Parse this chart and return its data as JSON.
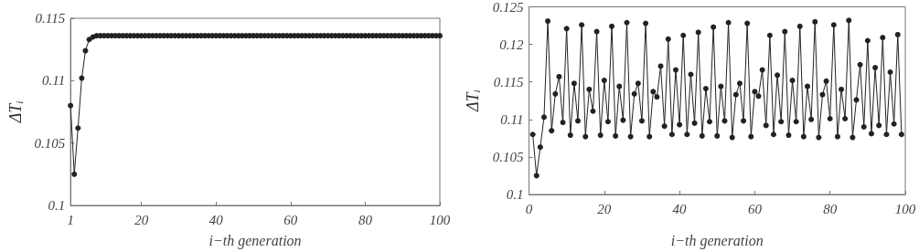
{
  "chart_data": [
    {
      "type": "line",
      "xlabel": "i−th generation",
      "ylabel": "ΔT$_{i}$",
      "marker": "circle",
      "line_style": "solid",
      "grid": false,
      "x": [
        1,
        2,
        3,
        4,
        5,
        6,
        7,
        8,
        9,
        10,
        11,
        12,
        13,
        14,
        15,
        16,
        17,
        18,
        19,
        20,
        21,
        22,
        23,
        24,
        25,
        26,
        27,
        28,
        29,
        30,
        31,
        32,
        33,
        34,
        35,
        36,
        37,
        38,
        39,
        40,
        41,
        42,
        43,
        44,
        45,
        46,
        47,
        48,
        49,
        50,
        51,
        52,
        53,
        54,
        55,
        56,
        57,
        58,
        59,
        60,
        61,
        62,
        63,
        64,
        65,
        66,
        67,
        68,
        69,
        70,
        71,
        72,
        73,
        74,
        75,
        76,
        77,
        78,
        79,
        80,
        81,
        82,
        83,
        84,
        85,
        86,
        87,
        88,
        89,
        90,
        91,
        92,
        93,
        94,
        95,
        96,
        97,
        98,
        99,
        100
      ],
      "xlim": [
        1,
        100
      ],
      "xticks": [
        1,
        20,
        40,
        60,
        80,
        100
      ],
      "ylim": [
        0.1,
        0.115
      ],
      "yticks": [
        0.1,
        0.105,
        0.11,
        0.115
      ],
      "series": [
        {
          "color": "#222222",
          "values": [
            0.108,
            0.1025,
            0.1062,
            0.1102,
            0.1124,
            0.1133,
            0.1135,
            0.1136,
            0.1136,
            0.1136,
            0.1136,
            0.1136,
            0.1136,
            0.1136,
            0.1136,
            0.1136,
            0.1136,
            0.1136,
            0.1136,
            0.1136,
            0.1136,
            0.1136,
            0.1136,
            0.1136,
            0.1136,
            0.1136,
            0.1136,
            0.1136,
            0.1136,
            0.1136,
            0.1136,
            0.1136,
            0.1136,
            0.1136,
            0.1136,
            0.1136,
            0.1136,
            0.1136,
            0.1136,
            0.1136,
            0.1136,
            0.1136,
            0.1136,
            0.1136,
            0.1136,
            0.1136,
            0.1136,
            0.1136,
            0.1136,
            0.1136,
            0.1136,
            0.1136,
            0.1136,
            0.1136,
            0.1136,
            0.1136,
            0.1136,
            0.1136,
            0.1136,
            0.1136,
            0.1136,
            0.1136,
            0.1136,
            0.1136,
            0.1136,
            0.1136,
            0.1136,
            0.1136,
            0.1136,
            0.1136,
            0.1136,
            0.1136,
            0.1136,
            0.1136,
            0.1136,
            0.1136,
            0.1136,
            0.1136,
            0.1136,
            0.1136,
            0.1136,
            0.1136,
            0.1136,
            0.1136,
            0.1136,
            0.1136,
            0.1136,
            0.1136,
            0.1136,
            0.1136,
            0.1136,
            0.1136,
            0.1136,
            0.1136,
            0.1136,
            0.1136,
            0.1136,
            0.1136,
            0.1136,
            0.1136
          ]
        }
      ]
    },
    {
      "type": "line",
      "xlabel": "i−th generation",
      "ylabel": "ΔT$_{i}$",
      "marker": "circle",
      "line_style": "solid",
      "grid": false,
      "x": [
        1,
        2,
        3,
        4,
        5,
        6,
        7,
        8,
        9,
        10,
        11,
        12,
        13,
        14,
        15,
        16,
        17,
        18,
        19,
        20,
        21,
        22,
        23,
        24,
        25,
        26,
        27,
        28,
        29,
        30,
        31,
        32,
        33,
        34,
        35,
        36,
        37,
        38,
        39,
        40,
        41,
        42,
        43,
        44,
        45,
        46,
        47,
        48,
        49,
        50,
        51,
        52,
        53,
        54,
        55,
        56,
        57,
        58,
        59,
        60,
        61,
        62,
        63,
        64,
        65,
        66,
        67,
        68,
        69,
        70,
        71,
        72,
        73,
        74,
        75,
        76,
        77,
        78,
        79,
        80,
        81,
        82,
        83,
        84,
        85,
        86,
        87,
        88,
        89,
        90,
        91,
        92,
        93,
        94,
        95,
        96,
        97,
        98,
        99
      ],
      "xlim": [
        0,
        100
      ],
      "xticks": [
        0,
        20,
        40,
        60,
        80,
        100
      ],
      "ylim": [
        0.1,
        0.125
      ],
      "yticks": [
        0.1,
        0.105,
        0.11,
        0.115,
        0.12,
        0.125
      ],
      "series": [
        {
          "color": "#222222",
          "values": [
            0.108,
            0.1025,
            0.1063,
            0.1103,
            0.1231,
            0.1085,
            0.1134,
            0.1157,
            0.1096,
            0.1221,
            0.1079,
            0.1148,
            0.1098,
            0.1226,
            0.1077,
            0.114,
            0.1111,
            0.1217,
            0.1079,
            0.1152,
            0.1097,
            0.1224,
            0.1078,
            0.1144,
            0.1099,
            0.1229,
            0.1077,
            0.1134,
            0.1148,
            0.1098,
            0.1228,
            0.1077,
            0.1137,
            0.113,
            0.1171,
            0.1091,
            0.1207,
            0.108,
            0.1166,
            0.1093,
            0.1212,
            0.108,
            0.116,
            0.1095,
            0.1216,
            0.1078,
            0.1141,
            0.1097,
            0.1223,
            0.1078,
            0.1144,
            0.1098,
            0.1229,
            0.1076,
            0.1133,
            0.1148,
            0.1098,
            0.1228,
            0.1077,
            0.1137,
            0.1131,
            0.1166,
            0.1092,
            0.1212,
            0.108,
            0.1159,
            0.1097,
            0.1217,
            0.1079,
            0.1152,
            0.1097,
            0.1224,
            0.1077,
            0.1144,
            0.11,
            0.123,
            0.1076,
            0.1133,
            0.1151,
            0.1101,
            0.1226,
            0.1077,
            0.114,
            0.1101,
            0.1232,
            0.1076,
            0.1126,
            0.1173,
            0.109,
            0.1205,
            0.1081,
            0.1169,
            0.1092,
            0.1209,
            0.108,
            0.1163,
            0.1094,
            0.1213,
            0.108
          ]
        }
      ]
    }
  ]
}
